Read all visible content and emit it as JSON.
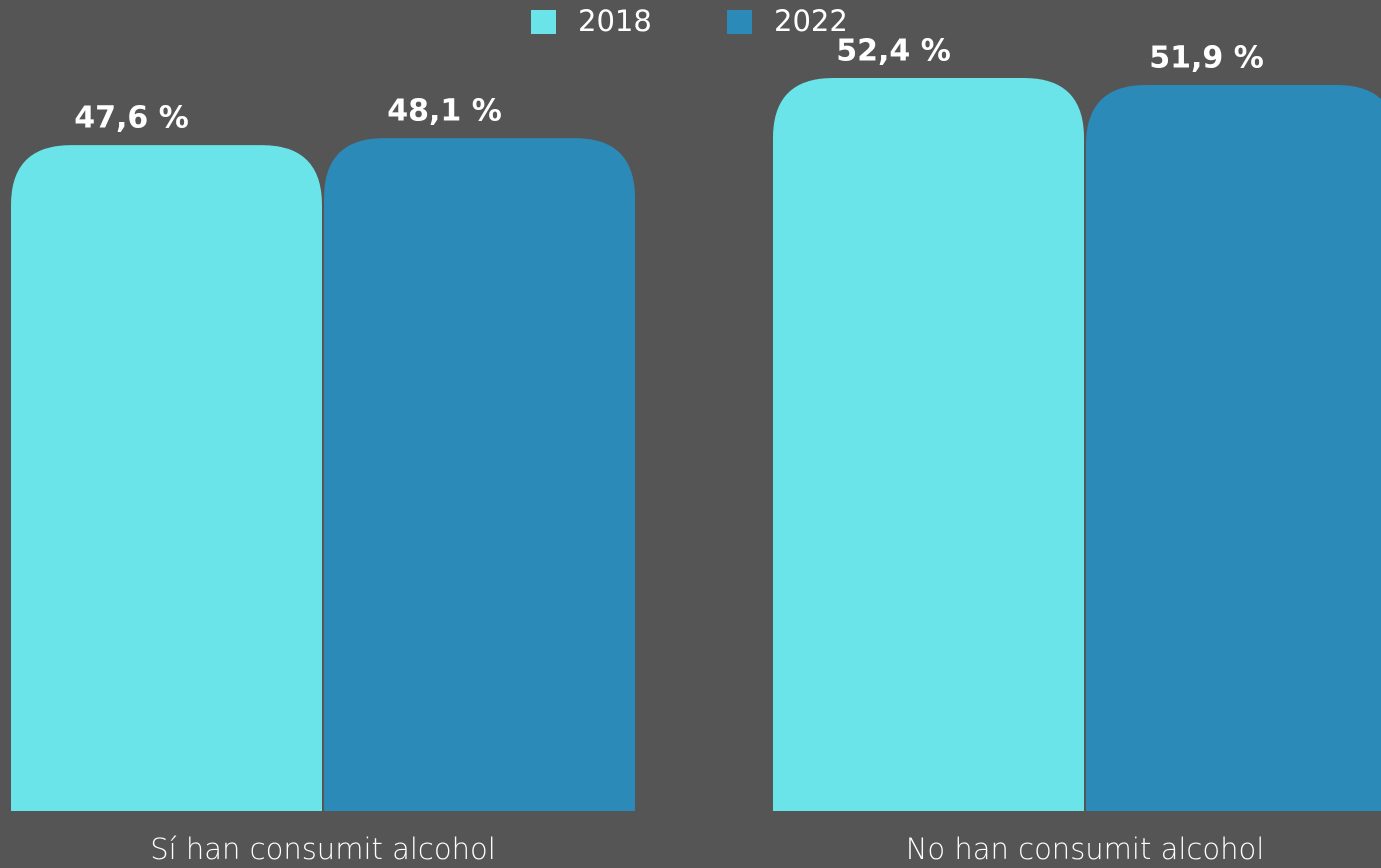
{
  "chart_data": {
    "type": "bar",
    "categories": [
      "Sí han consumit alcohol",
      "No han consumit alcohol"
    ],
    "series": [
      {
        "name": "2018",
        "color": "#6ae4e8",
        "values": [
          47.6,
          52.4
        ],
        "value_labels": [
          "47,6 %",
          "52,4 %"
        ]
      },
      {
        "name": "2022",
        "color": "#2b8ab8",
        "values": [
          48.1,
          51.9
        ],
        "value_labels": [
          "48,1 %",
          "51,9 %"
        ]
      }
    ]
  }
}
